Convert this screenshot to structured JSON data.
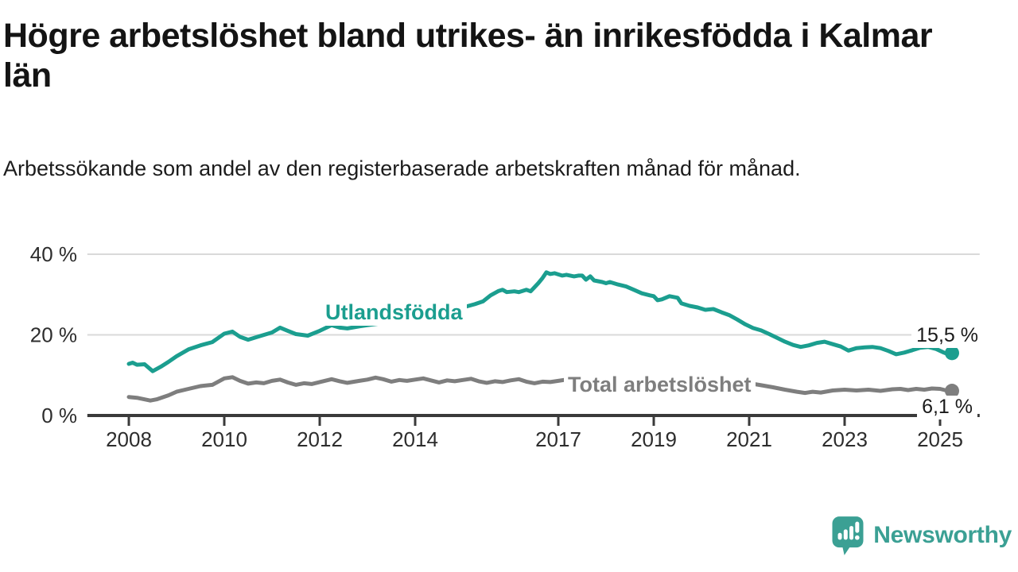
{
  "header": {
    "title": "Högre arbetslöshet bland utrikes- än inrikesfödda i Kalmar län",
    "subtitle": "Arbetssökande som andel av den registerbaserade arbetskraften månad för månad."
  },
  "chart_data": {
    "type": "line",
    "title": "Högre arbetslöshet bland utrikes- än inrikesfödda i Kalmar län",
    "subtitle": "Arbetssökande som andel av den registerbaserade arbetskraften månad för månad.",
    "unit": "%",
    "grid": true,
    "legend": "inline-labels",
    "x_range_years": [
      2007.13,
      2025.83
    ],
    "ylim": [
      0,
      40
    ],
    "x_ticks": [
      2008,
      2010,
      2012,
      2014,
      2017,
      2019,
      2021,
      2023,
      2025
    ],
    "y_ticks": [
      {
        "value": 0,
        "label": "0 %"
      },
      {
        "value": 20,
        "label": "20 %"
      },
      {
        "value": 40,
        "label": "40 %"
      }
    ],
    "series": [
      {
        "name": "Utlandsfödda",
        "color": "#1b9e8f",
        "end_label": "15,5 %",
        "end_value": 15.5,
        "points": [
          [
            2008.0,
            12.8
          ],
          [
            2008.08,
            13.1
          ],
          [
            2008.17,
            12.6
          ],
          [
            2008.33,
            12.7
          ],
          [
            2008.5,
            11.0
          ],
          [
            2008.67,
            12.1
          ],
          [
            2008.83,
            13.3
          ],
          [
            2009.0,
            14.7
          ],
          [
            2009.25,
            16.4
          ],
          [
            2009.5,
            17.4
          ],
          [
            2009.75,
            18.2
          ],
          [
            2010.0,
            20.3
          ],
          [
            2010.17,
            20.8
          ],
          [
            2010.33,
            19.5
          ],
          [
            2010.5,
            18.8
          ],
          [
            2010.75,
            19.7
          ],
          [
            2011.0,
            20.6
          ],
          [
            2011.17,
            21.8
          ],
          [
            2011.33,
            21.0
          ],
          [
            2011.5,
            20.2
          ],
          [
            2011.75,
            19.8
          ],
          [
            2012.0,
            21.0
          ],
          [
            2012.25,
            22.4
          ],
          [
            2012.42,
            21.8
          ],
          [
            2012.58,
            21.6
          ],
          [
            2012.83,
            22.1
          ],
          [
            2013.0,
            22.4
          ],
          [
            2013.25,
            22.8
          ],
          [
            2013.5,
            23.2
          ],
          [
            2013.75,
            23.7
          ],
          [
            2014.0,
            24.3
          ],
          [
            2014.25,
            24.9
          ],
          [
            2014.5,
            25.3
          ],
          [
            2014.75,
            26.0
          ],
          [
            2015.0,
            26.8
          ],
          [
            2015.25,
            27.6
          ],
          [
            2015.42,
            28.3
          ],
          [
            2015.58,
            29.8
          ],
          [
            2015.75,
            30.9
          ],
          [
            2015.83,
            31.2
          ],
          [
            2015.92,
            30.6
          ],
          [
            2016.08,
            30.8
          ],
          [
            2016.17,
            30.6
          ],
          [
            2016.33,
            31.2
          ],
          [
            2016.42,
            30.8
          ],
          [
            2016.5,
            31.8
          ],
          [
            2016.58,
            32.8
          ],
          [
            2016.67,
            34.1
          ],
          [
            2016.75,
            35.5
          ],
          [
            2016.83,
            35.1
          ],
          [
            2016.92,
            35.3
          ],
          [
            2017.08,
            34.7
          ],
          [
            2017.17,
            34.9
          ],
          [
            2017.33,
            34.5
          ],
          [
            2017.42,
            34.7
          ],
          [
            2017.5,
            34.7
          ],
          [
            2017.58,
            33.7
          ],
          [
            2017.67,
            34.5
          ],
          [
            2017.75,
            33.5
          ],
          [
            2017.92,
            33.1
          ],
          [
            2018.0,
            32.8
          ],
          [
            2018.08,
            33.1
          ],
          [
            2018.25,
            32.5
          ],
          [
            2018.42,
            32.0
          ],
          [
            2018.58,
            31.2
          ],
          [
            2018.75,
            30.3
          ],
          [
            2018.92,
            29.8
          ],
          [
            2019.0,
            29.6
          ],
          [
            2019.08,
            28.6
          ],
          [
            2019.17,
            28.8
          ],
          [
            2019.33,
            29.6
          ],
          [
            2019.5,
            29.2
          ],
          [
            2019.58,
            27.8
          ],
          [
            2019.75,
            27.2
          ],
          [
            2019.92,
            26.8
          ],
          [
            2020.08,
            26.2
          ],
          [
            2020.25,
            26.4
          ],
          [
            2020.42,
            25.6
          ],
          [
            2020.58,
            24.9
          ],
          [
            2020.75,
            23.8
          ],
          [
            2020.92,
            22.6
          ],
          [
            2021.08,
            21.7
          ],
          [
            2021.25,
            21.1
          ],
          [
            2021.42,
            20.2
          ],
          [
            2021.58,
            19.3
          ],
          [
            2021.75,
            18.3
          ],
          [
            2021.92,
            17.5
          ],
          [
            2022.08,
            17.0
          ],
          [
            2022.25,
            17.4
          ],
          [
            2022.42,
            18.0
          ],
          [
            2022.58,
            18.3
          ],
          [
            2022.75,
            17.7
          ],
          [
            2022.92,
            17.1
          ],
          [
            2023.08,
            16.1
          ],
          [
            2023.25,
            16.7
          ],
          [
            2023.42,
            16.9
          ],
          [
            2023.58,
            17.0
          ],
          [
            2023.75,
            16.7
          ],
          [
            2023.92,
            16.0
          ],
          [
            2024.08,
            15.2
          ],
          [
            2024.25,
            15.6
          ],
          [
            2024.42,
            16.2
          ],
          [
            2024.58,
            16.8
          ],
          [
            2024.75,
            17.0
          ],
          [
            2024.92,
            16.5
          ],
          [
            2025.08,
            15.6
          ],
          [
            2025.17,
            15.2
          ],
          [
            2025.25,
            15.5
          ]
        ]
      },
      {
        "name": "Total arbetslöshet",
        "color": "#7e7e7e",
        "end_label": "6,1 %",
        "end_value": 6.1,
        "points": [
          [
            2008.0,
            4.6
          ],
          [
            2008.17,
            4.4
          ],
          [
            2008.45,
            3.7
          ],
          [
            2008.58,
            4.0
          ],
          [
            2008.83,
            5.0
          ],
          [
            2009.0,
            5.9
          ],
          [
            2009.25,
            6.6
          ],
          [
            2009.5,
            7.3
          ],
          [
            2009.75,
            7.6
          ],
          [
            2010.0,
            9.2
          ],
          [
            2010.17,
            9.5
          ],
          [
            2010.33,
            8.6
          ],
          [
            2010.5,
            7.9
          ],
          [
            2010.67,
            8.2
          ],
          [
            2010.83,
            8.0
          ],
          [
            2011.0,
            8.6
          ],
          [
            2011.17,
            8.9
          ],
          [
            2011.33,
            8.2
          ],
          [
            2011.5,
            7.6
          ],
          [
            2011.67,
            8.0
          ],
          [
            2011.83,
            7.8
          ],
          [
            2012.0,
            8.3
          ],
          [
            2012.25,
            9.0
          ],
          [
            2012.42,
            8.5
          ],
          [
            2012.58,
            8.1
          ],
          [
            2012.83,
            8.6
          ],
          [
            2013.0,
            8.9
          ],
          [
            2013.17,
            9.4
          ],
          [
            2013.33,
            9.0
          ],
          [
            2013.5,
            8.4
          ],
          [
            2013.67,
            8.8
          ],
          [
            2013.83,
            8.6
          ],
          [
            2014.0,
            8.9
          ],
          [
            2014.17,
            9.2
          ],
          [
            2014.33,
            8.7
          ],
          [
            2014.5,
            8.2
          ],
          [
            2014.67,
            8.7
          ],
          [
            2014.83,
            8.5
          ],
          [
            2015.0,
            8.8
          ],
          [
            2015.17,
            9.1
          ],
          [
            2015.33,
            8.5
          ],
          [
            2015.5,
            8.1
          ],
          [
            2015.67,
            8.5
          ],
          [
            2015.83,
            8.3
          ],
          [
            2016.0,
            8.7
          ],
          [
            2016.17,
            9.0
          ],
          [
            2016.33,
            8.4
          ],
          [
            2016.5,
            8.0
          ],
          [
            2016.67,
            8.4
          ],
          [
            2016.83,
            8.3
          ],
          [
            2017.0,
            8.6
          ],
          [
            2017.17,
            8.9
          ],
          [
            2017.33,
            8.4
          ],
          [
            2017.5,
            8.0
          ],
          [
            2017.75,
            8.3
          ],
          [
            2018.0,
            8.4
          ],
          [
            2018.25,
            8.1
          ],
          [
            2018.5,
            7.7
          ],
          [
            2018.75,
            7.8
          ],
          [
            2019.0,
            7.9
          ],
          [
            2019.25,
            7.6
          ],
          [
            2019.5,
            7.4
          ],
          [
            2019.75,
            7.6
          ],
          [
            2020.0,
            7.9
          ],
          [
            2020.25,
            8.7
          ],
          [
            2020.5,
            8.9
          ],
          [
            2020.75,
            8.5
          ],
          [
            2021.0,
            8.0
          ],
          [
            2021.25,
            7.5
          ],
          [
            2021.5,
            7.0
          ],
          [
            2021.75,
            6.4
          ],
          [
            2022.0,
            5.9
          ],
          [
            2022.17,
            5.6
          ],
          [
            2022.33,
            5.9
          ],
          [
            2022.5,
            5.7
          ],
          [
            2022.75,
            6.2
          ],
          [
            2023.0,
            6.4
          ],
          [
            2023.25,
            6.2
          ],
          [
            2023.5,
            6.4
          ],
          [
            2023.75,
            6.1
          ],
          [
            2024.0,
            6.5
          ],
          [
            2024.17,
            6.6
          ],
          [
            2024.33,
            6.3
          ],
          [
            2024.5,
            6.6
          ],
          [
            2024.67,
            6.4
          ],
          [
            2024.83,
            6.7
          ],
          [
            2025.0,
            6.6
          ],
          [
            2025.1,
            6.3
          ],
          [
            2025.25,
            6.1
          ]
        ]
      }
    ]
  },
  "colors": {
    "accent_teal": "#1b9e8f",
    "series_gray": "#7e7e7e",
    "axis": "#3a3a3a",
    "gridline": "#d9d9d9",
    "tick_label": "#2d2d2d",
    "text": "#141414"
  },
  "footer": {
    "brand": "Newsworthy",
    "brand_color": "#3ba094"
  }
}
